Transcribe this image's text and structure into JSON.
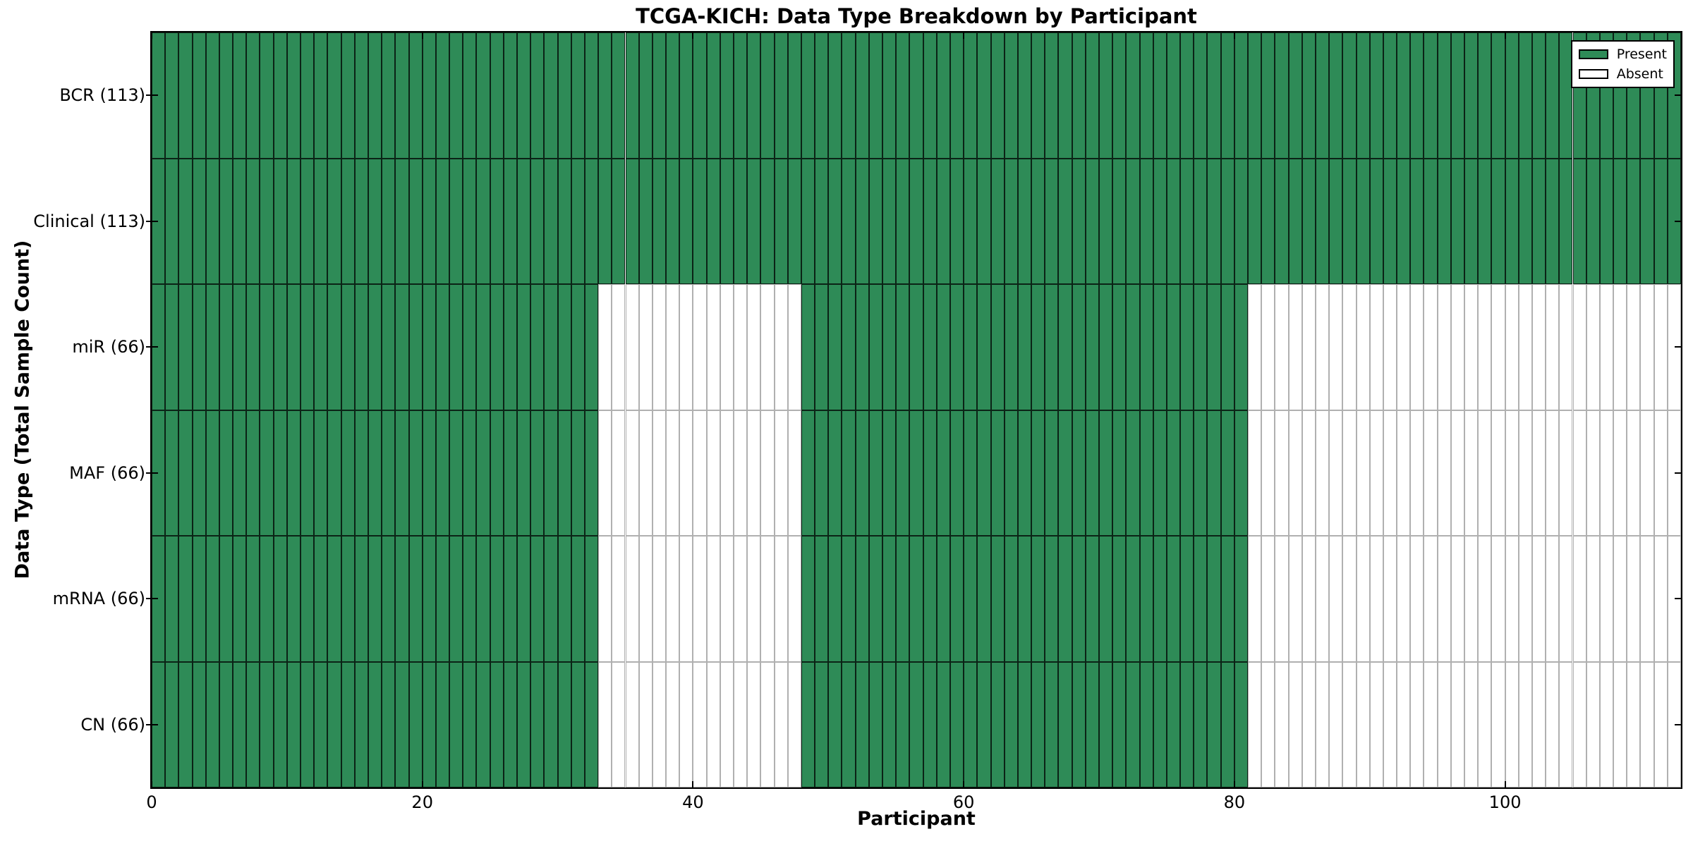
{
  "chart_data": {
    "type": "heatmap",
    "title": "TCGA-KICH: Data Type Breakdown by Participant",
    "xlabel": "Participant",
    "ylabel": "Data Type (Total Sample Count)",
    "x_ticks": [
      0,
      20,
      40,
      60,
      80,
      100
    ],
    "x_range": [
      0,
      113
    ],
    "n_participants": 113,
    "rows": [
      {
        "label": "BCR (113)",
        "data_type": "BCR",
        "total_samples": 113,
        "present_segments": [
          [
            0,
            113
          ]
        ]
      },
      {
        "label": "Clinical (113)",
        "data_type": "Clinical",
        "total_samples": 113,
        "present_segments": [
          [
            0,
            113
          ]
        ]
      },
      {
        "label": "miR (66)",
        "data_type": "miR",
        "total_samples": 66,
        "present_segments": [
          [
            0,
            33
          ],
          [
            48,
            81
          ]
        ]
      },
      {
        "label": "MAF (66)",
        "data_type": "MAF",
        "total_samples": 66,
        "present_segments": [
          [
            0,
            33
          ],
          [
            48,
            81
          ]
        ]
      },
      {
        "label": "mRNA (66)",
        "data_type": "mRNA",
        "total_samples": 66,
        "present_segments": [
          [
            0,
            33
          ],
          [
            48,
            81
          ]
        ]
      },
      {
        "label": "CN (66)",
        "data_type": "CN",
        "total_samples": 66,
        "present_segments": [
          [
            0,
            33
          ],
          [
            48,
            81
          ]
        ]
      }
    ],
    "legend": {
      "position": "upper right",
      "entries": [
        {
          "label": "Present",
          "color": "#2e8b57"
        },
        {
          "label": "Absent",
          "color": "#ffffff"
        }
      ]
    },
    "colors": {
      "present_fill": "#2e8b57",
      "present_edge": "#000000",
      "absent_fill": "#ffffff",
      "absent_edge": "#b0b0b0",
      "spine": "#000000"
    }
  }
}
